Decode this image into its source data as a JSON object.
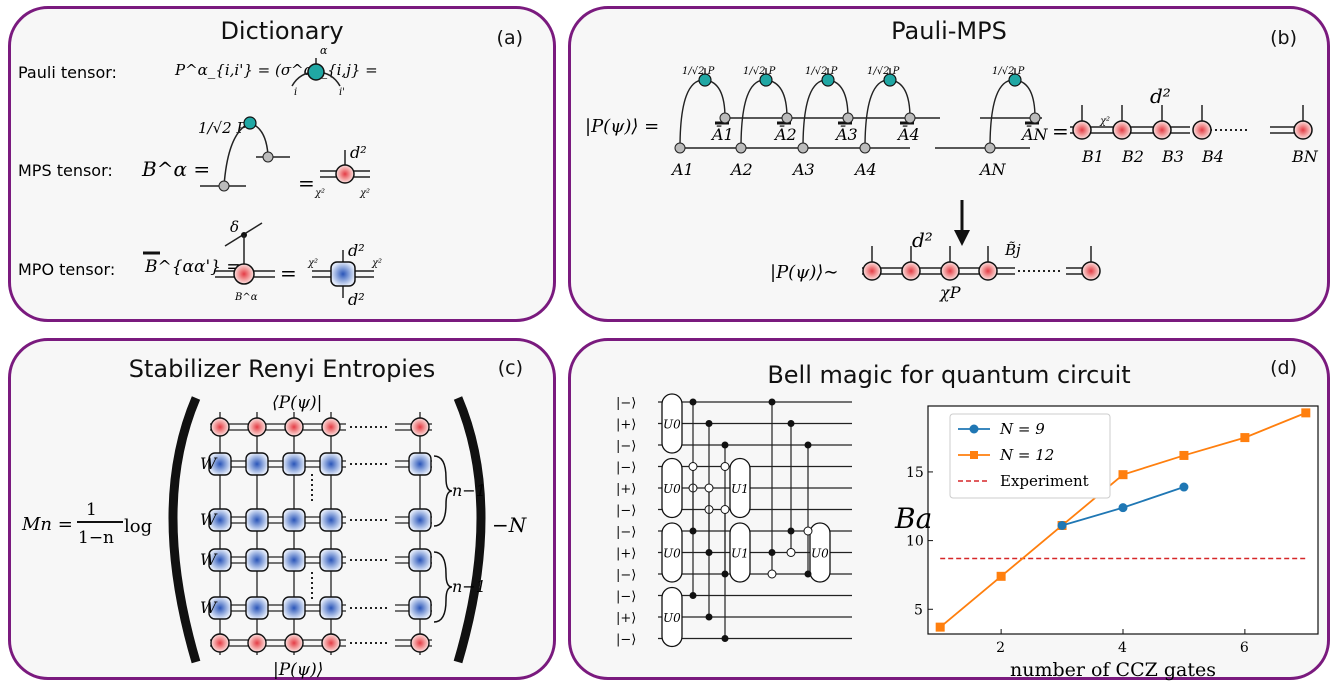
{
  "panel_a": {
    "title": "Dictionary",
    "label": "(a)",
    "rows": [
      {
        "name": "Pauli tensor:",
        "formula": "P^α_{i,i'} = (σ^α)_{i,j} ="
      },
      {
        "name": "MPS tensor:",
        "formula": "B^α ="
      },
      {
        "name": "MPO tensor:",
        "formula": "B^{αα'} ="
      }
    ],
    "symbols": {
      "norm": "1/√2 P",
      "d2": "d²",
      "chi2": "χ²",
      "delta": "δ",
      "i": "i",
      "i_prime": "i'",
      "alpha": "α"
    }
  },
  "panel_b": {
    "title": "Pauli-MPS",
    "label": "(b)",
    "lhs": "|P(ψ)⟩ =",
    "lhs2": "|P(ψ)⟩∼",
    "site_labels": [
      "A1",
      "A2",
      "A3",
      "A4",
      "AN"
    ],
    "conj_labels": [
      "Ā1",
      "Ā2",
      "Ā3",
      "Ā4",
      "ĀN"
    ],
    "mps_labels": [
      "B1",
      "B2",
      "B3",
      "B4",
      "BN"
    ],
    "chi_p": "χP",
    "b_tilde": "B̃j"
  },
  "panel_c": {
    "title": "Stabilizer Renyi Entropies",
    "label": "(c)",
    "bra": "⟨P(ψ)|",
    "ket": "|P(ψ)⟩",
    "W": "W",
    "n_minus_1": "n−1",
    "formula_lhs": "Mn =",
    "fraction_num": "1",
    "fraction_den": "1−n",
    "log": "log",
    "minus_n": "−N"
  },
  "panel_d": {
    "title": "Bell magic for quantum circuit",
    "label": "(d)",
    "qubit_states": [
      "|−⟩",
      "|+⟩",
      "|−⟩",
      "|−⟩",
      "|+⟩",
      "|−⟩",
      "|−⟩",
      "|+⟩",
      "|−⟩",
      "|−⟩",
      "|+⟩",
      "|−⟩"
    ],
    "gates": [
      "U0",
      "U0",
      "U0",
      "U0",
      "U1",
      "U1",
      "U0"
    ]
  },
  "chart_data": {
    "type": "line",
    "xlabel": "number of CCZ gates",
    "ylabel": "Ba",
    "xticks": [
      2,
      4,
      6
    ],
    "yticks": [
      5,
      10,
      15
    ],
    "xlim": [
      0.8,
      7.2
    ],
    "ylim": [
      3.2,
      19.8
    ],
    "legend_position": "top-left",
    "series": [
      {
        "name": "N = 9",
        "color": "#1f77b4",
        "marker": "circle",
        "x": [
          3,
          4,
          5
        ],
        "y": [
          11.1,
          12.4,
          13.9
        ]
      },
      {
        "name": "N = 12",
        "color": "#ff7f0e",
        "marker": "square",
        "x": [
          1,
          2,
          3,
          4,
          5,
          6,
          7
        ],
        "y": [
          3.7,
          7.4,
          11.1,
          14.8,
          16.2,
          17.5,
          19.3
        ]
      }
    ],
    "reference_line": {
      "name": "Experiment",
      "color": "#d62728",
      "y": 8.7,
      "style": "dashed"
    }
  }
}
